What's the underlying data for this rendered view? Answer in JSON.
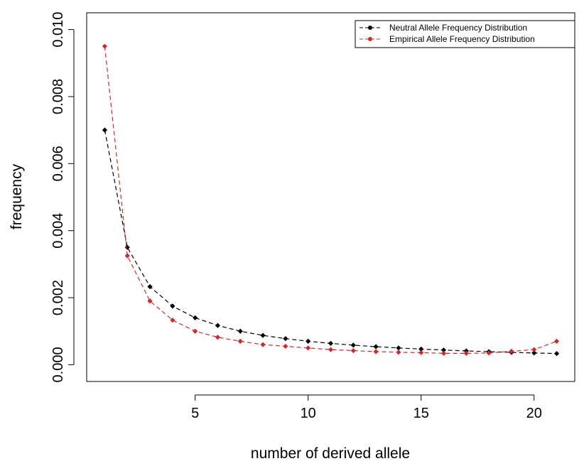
{
  "chart_data": {
    "type": "line",
    "title": "",
    "xlabel": "number of derived allele",
    "ylabel": "frequency",
    "xlim": [
      0.2,
      21.8
    ],
    "ylim": [
      -0.0005,
      0.0105
    ],
    "x_ticks": [
      5,
      10,
      15,
      20
    ],
    "x_tick_labels": [
      "5",
      "10",
      "15",
      "20"
    ],
    "y_ticks": [
      0.0,
      0.002,
      0.004,
      0.006,
      0.008,
      0.01
    ],
    "y_tick_labels": [
      "0.000",
      "0.002",
      "0.004",
      "0.006",
      "0.008",
      "0.010"
    ],
    "grid": false,
    "legend_position": "top-right",
    "x": [
      1,
      2,
      3,
      4,
      5,
      6,
      7,
      8,
      9,
      10,
      11,
      12,
      13,
      14,
      15,
      16,
      17,
      18,
      19,
      20,
      21
    ],
    "series": [
      {
        "name": "Neutral Allele Frequency Distribution",
        "color": "#000000",
        "values": [
          0.007,
          0.0035,
          0.00233,
          0.00175,
          0.0014,
          0.00117,
          0.001,
          0.000875,
          0.000778,
          0.0007,
          0.000636,
          0.000583,
          0.000538,
          0.0005,
          0.000467,
          0.000438,
          0.000412,
          0.000389,
          0.000368,
          0.00035,
          0.000333
        ]
      },
      {
        "name": "Empirical Allele Frequency Distribution",
        "color": "#d62728",
        "values": [
          0.0095,
          0.00325,
          0.0019,
          0.00133,
          0.001,
          0.00082,
          0.0007,
          0.0006,
          0.00055,
          0.0005,
          0.00045,
          0.00042,
          0.00039,
          0.00037,
          0.00036,
          0.00034,
          0.00034,
          0.00035,
          0.0004,
          0.00045,
          0.0007
        ]
      }
    ]
  }
}
